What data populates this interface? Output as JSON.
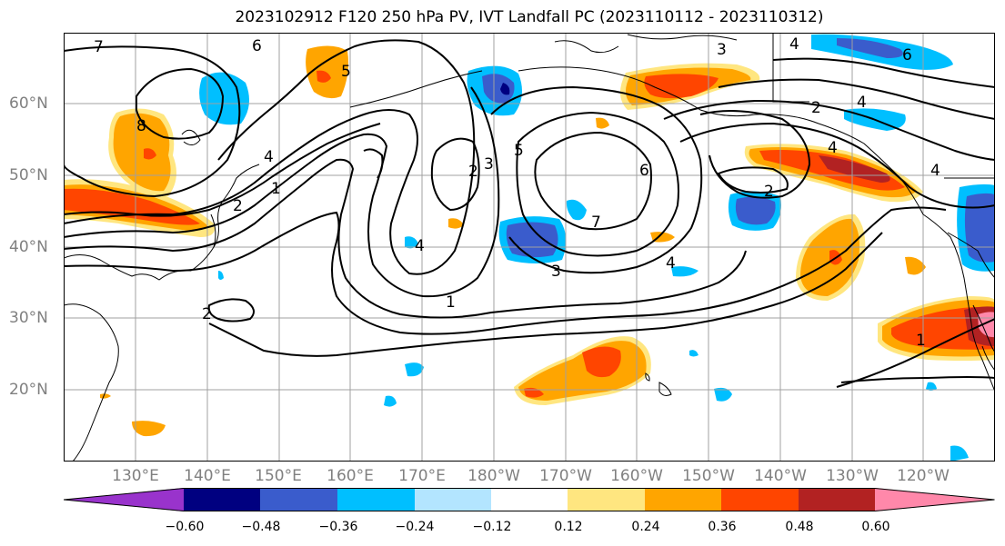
{
  "title": "2023102912 F120 250 hPa PV, IVT Landfall PC (2023110112 - 2023110312)",
  "lat_labels": [
    "60°N",
    "50°N",
    "40°N",
    "30°N",
    "20°N"
  ],
  "lon_labels": [
    "130°E",
    "140°E",
    "150°E",
    "160°E",
    "170°E",
    "180°W",
    "170°W",
    "160°W",
    "150°W",
    "140°W",
    "130°W",
    "120°W"
  ],
  "colorbar": {
    "ticks": [
      "−0.60",
      "−0.48",
      "−0.36",
      "−0.24",
      "−0.12",
      "0.12",
      "0.24",
      "0.36",
      "0.48",
      "0.60"
    ],
    "colors": [
      "#9933cc",
      "#000080",
      "#3a5ccc",
      "#00bfff",
      "#b3e5ff",
      "#ffffff",
      "#ffe680",
      "#ffa500",
      "#ff4500",
      "#b22222",
      "#ff88aa"
    ]
  },
  "contour_labels": [
    "7",
    "6",
    "5",
    "8",
    "4",
    "1",
    "2",
    "3",
    "2",
    "5",
    "3",
    "6",
    "7",
    "3",
    "4",
    "2",
    "4",
    "2",
    "1",
    "1",
    "2",
    "4",
    "4",
    "6",
    "4",
    "4"
  ],
  "colors": {
    "orange": "#ffa500",
    "red": "#ff4500",
    "dark_red": "#b22222",
    "light_yellow": "#ffe680",
    "cyan": "#00bfff",
    "blue": "#3a5ccc",
    "navy": "#000080",
    "pink": "#ff88aa"
  }
}
